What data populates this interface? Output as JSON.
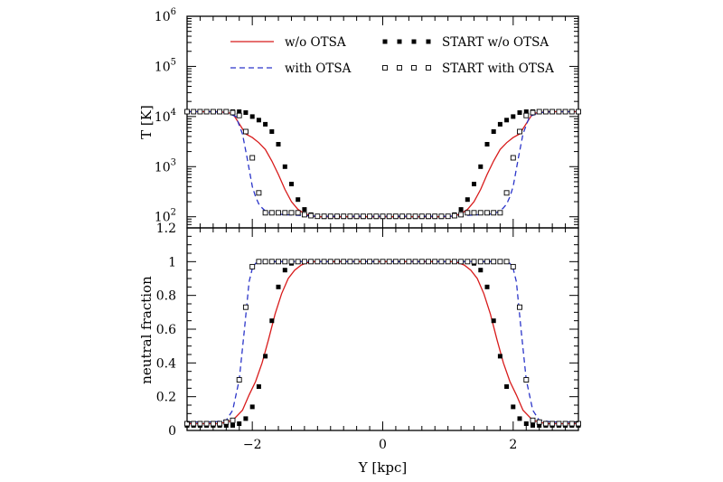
{
  "colors": {
    "red_series": "#d81b1b",
    "blue_series": "#2b35c9",
    "black": "#000000"
  },
  "chart_data": [
    {
      "type": "line",
      "panel": "top",
      "xlabel": "",
      "ylabel": "T [K]",
      "xlim": [
        -3,
        3
      ],
      "ylim": [
        60,
        1000000
      ],
      "y_scale": "log",
      "y_tick_values": [
        100,
        1000,
        10000,
        100000,
        1000000
      ],
      "y_tick_labels": [
        "10",
        "10",
        "10",
        "10",
        "10"
      ],
      "y_tick_exponents": [
        "2",
        "3",
        "4",
        "5",
        "6"
      ],
      "legend": {
        "placement": "top",
        "entries": [
          {
            "label": "w/o OTSA",
            "style": "red-solid-line"
          },
          {
            "label": "with OTSA",
            "style": "blue-dashed-line"
          },
          {
            "label": "START w/o OTSA",
            "style": "filled-black-squares"
          },
          {
            "label": "START with OTSA",
            "style": "open-black-squares"
          }
        ]
      },
      "series": [
        {
          "name": "w/o OTSA",
          "style": "red-solid-line",
          "x": [
            -3,
            -2.5,
            -2.3,
            -2.1,
            -2.0,
            -1.9,
            -1.8,
            -1.7,
            -1.6,
            -1.5,
            -1.4,
            -1.3,
            -1.2,
            -1.1,
            -1.0,
            -0.5,
            0,
            0.5,
            1.0,
            1.1,
            1.2,
            1.3,
            1.4,
            1.5,
            1.6,
            1.7,
            1.8,
            1.9,
            2.0,
            2.1,
            2.3,
            2.5,
            3
          ],
          "y": [
            12500,
            12500,
            11500,
            4500,
            3800,
            3000,
            2200,
            1300,
            700,
            350,
            200,
            140,
            115,
            104,
            100,
            100,
            100,
            100,
            100,
            104,
            115,
            140,
            200,
            350,
            700,
            1300,
            2200,
            3000,
            3800,
            4500,
            11500,
            12500,
            12500
          ]
        },
        {
          "name": "with OTSA",
          "style": "blue-dashed-line",
          "x": [
            -3,
            -2.6,
            -2.4,
            -2.25,
            -2.15,
            -2.08,
            -2.0,
            -1.95,
            -1.9,
            -1.85,
            -1.8,
            -1.7,
            -1.5,
            -1.3,
            -1.1,
            -1.0,
            0,
            1.0,
            1.1,
            1.3,
            1.5,
            1.7,
            1.8,
            1.85,
            1.9,
            1.95,
            2.0,
            2.08,
            2.15,
            2.25,
            2.4,
            2.6,
            3
          ],
          "y": [
            12500,
            12500,
            12000,
            10000,
            4500,
            1500,
            400,
            250,
            180,
            150,
            130,
            115,
            110,
            107,
            104,
            102,
            102,
            102,
            104,
            107,
            110,
            115,
            130,
            150,
            180,
            250,
            400,
            1500,
            4500,
            10000,
            12000,
            12500,
            12500
          ]
        },
        {
          "name": "START w/o OTSA",
          "style": "filled-black-squares",
          "x": [
            -3.0,
            -2.9,
            -2.8,
            -2.7,
            -2.6,
            -2.5,
            -2.4,
            -2.3,
            -2.2,
            -2.1,
            -2.0,
            -1.9,
            -1.8,
            -1.7,
            -1.6,
            -1.5,
            -1.4,
            -1.3,
            -1.2,
            -1.1,
            -1.0,
            -0.9,
            -0.8,
            -0.7,
            -0.6,
            -0.5,
            -0.4,
            -0.3,
            -0.2,
            -0.1,
            0.0,
            0.1,
            0.2,
            0.3,
            0.4,
            0.5,
            0.6,
            0.7,
            0.8,
            0.9,
            1.0,
            1.1,
            1.2,
            1.3,
            1.4,
            1.5,
            1.6,
            1.7,
            1.8,
            1.9,
            2.0,
            2.1,
            2.2,
            2.3,
            2.4,
            2.5,
            2.6,
            2.7,
            2.8,
            2.9,
            3.0
          ],
          "y": [
            12500,
            12500,
            12500,
            12500,
            12500,
            12500,
            12500,
            12500,
            12500,
            12000,
            10000,
            8500,
            7000,
            5000,
            2800,
            1000,
            450,
            220,
            140,
            110,
            102,
            100,
            100,
            100,
            100,
            100,
            100,
            100,
            100,
            100,
            100,
            100,
            100,
            100,
            100,
            100,
            100,
            100,
            100,
            100,
            102,
            110,
            140,
            220,
            450,
            1000,
            2800,
            5000,
            7000,
            8500,
            10000,
            12000,
            12500,
            12500,
            12500,
            12500,
            12500,
            12500,
            12500,
            12500,
            12500
          ]
        },
        {
          "name": "START with OTSA",
          "style": "open-black-squares",
          "x": [
            -3.0,
            -2.9,
            -2.8,
            -2.7,
            -2.6,
            -2.5,
            -2.4,
            -2.3,
            -2.2,
            -2.1,
            -2.0,
            -1.9,
            -1.8,
            -1.7,
            -1.6,
            -1.5,
            -1.4,
            -1.3,
            -1.2,
            -1.1,
            -1.0,
            -0.9,
            -0.8,
            -0.7,
            -0.6,
            -0.5,
            -0.4,
            -0.3,
            -0.2,
            -0.1,
            0.0,
            0.1,
            0.2,
            0.3,
            0.4,
            0.5,
            0.6,
            0.7,
            0.8,
            0.9,
            1.0,
            1.1,
            1.2,
            1.3,
            1.4,
            1.5,
            1.6,
            1.7,
            1.8,
            1.9,
            2.0,
            2.1,
            2.2,
            2.3,
            2.4,
            2.5,
            2.6,
            2.7,
            2.8,
            2.9,
            3.0
          ],
          "y": [
            12500,
            12500,
            12500,
            12500,
            12500,
            12500,
            12500,
            12000,
            10500,
            5000,
            1500,
            300,
            120,
            120,
            120,
            120,
            120,
            120,
            110,
            105,
            102,
            102,
            102,
            102,
            102,
            102,
            102,
            102,
            102,
            102,
            102,
            102,
            102,
            102,
            102,
            102,
            102,
            102,
            102,
            102,
            102,
            105,
            110,
            120,
            120,
            120,
            120,
            120,
            120,
            300,
            1500,
            5000,
            10500,
            12000,
            12500,
            12500,
            12500,
            12500,
            12500,
            12500,
            12500
          ]
        }
      ]
    },
    {
      "type": "line",
      "panel": "bottom",
      "xlabel": "Y [kpc]",
      "ylabel": "neutral fraction",
      "xlim": [
        -3,
        3
      ],
      "ylim": [
        0,
        1.2
      ],
      "x_tick_labels": [
        "−2",
        "0",
        "2"
      ],
      "x_tick_values": [
        -2,
        0,
        2
      ],
      "y_tick_labels": [
        "0",
        "0.2",
        "0.4",
        "0.6",
        "0.8",
        "1",
        "1.2"
      ],
      "y_tick_values": [
        0,
        0.2,
        0.4,
        0.6,
        0.8,
        1.0,
        1.2
      ],
      "series": [
        {
          "name": "w/o OTSA",
          "style": "red-solid-line",
          "x": [
            -3,
            -2.5,
            -2.3,
            -2.15,
            -2.05,
            -1.95,
            -1.85,
            -1.75,
            -1.65,
            -1.55,
            -1.45,
            -1.35,
            -1.25,
            -1.15,
            -1.05,
            -1.0,
            0,
            1.0,
            1.05,
            1.15,
            1.25,
            1.35,
            1.45,
            1.55,
            1.65,
            1.75,
            1.85,
            1.95,
            2.05,
            2.15,
            2.3,
            2.5,
            3
          ],
          "y": [
            0.04,
            0.04,
            0.06,
            0.12,
            0.21,
            0.29,
            0.4,
            0.54,
            0.69,
            0.81,
            0.9,
            0.95,
            0.98,
            0.995,
            1.0,
            1.0,
            1.0,
            1.0,
            1.0,
            0.995,
            0.98,
            0.95,
            0.9,
            0.81,
            0.69,
            0.54,
            0.4,
            0.29,
            0.21,
            0.12,
            0.06,
            0.04,
            0.04
          ]
        },
        {
          "name": "with OTSA",
          "style": "blue-dashed-line",
          "x": [
            -3,
            -2.6,
            -2.4,
            -2.3,
            -2.2,
            -2.12,
            -2.05,
            -2.0,
            -1.95,
            -1.9,
            -1.85,
            -1.8,
            -1.5,
            0,
            1.5,
            1.8,
            1.85,
            1.9,
            1.95,
            2.0,
            2.05,
            2.12,
            2.2,
            2.3,
            2.4,
            2.6,
            3
          ],
          "y": [
            0.05,
            0.05,
            0.06,
            0.12,
            0.3,
            0.6,
            0.88,
            0.96,
            0.99,
            1.0,
            1.0,
            1.0,
            1.0,
            1.0,
            1.0,
            1.0,
            1.0,
            1.0,
            0.99,
            0.96,
            0.88,
            0.6,
            0.3,
            0.12,
            0.06,
            0.05,
            0.05
          ]
        },
        {
          "name": "START w/o OTSA",
          "style": "filled-black-squares",
          "x": [
            -3.0,
            -2.9,
            -2.8,
            -2.7,
            -2.6,
            -2.5,
            -2.4,
            -2.3,
            -2.2,
            -2.1,
            -2.0,
            -1.9,
            -1.8,
            -1.7,
            -1.6,
            -1.5,
            -1.4,
            -1.3,
            -1.2,
            -1.1,
            -1.0,
            -0.9,
            -0.8,
            -0.7,
            -0.6,
            -0.5,
            -0.4,
            -0.3,
            -0.2,
            -0.1,
            0.0,
            0.1,
            0.2,
            0.3,
            0.4,
            0.5,
            0.6,
            0.7,
            0.8,
            0.9,
            1.0,
            1.1,
            1.2,
            1.3,
            1.4,
            1.5,
            1.6,
            1.7,
            1.8,
            1.9,
            2.0,
            2.1,
            2.2,
            2.3,
            2.4,
            2.5,
            2.6,
            2.7,
            2.8,
            2.9,
            3.0
          ],
          "y": [
            0.03,
            0.03,
            0.03,
            0.03,
            0.03,
            0.03,
            0.03,
            0.03,
            0.04,
            0.07,
            0.14,
            0.26,
            0.44,
            0.65,
            0.85,
            0.95,
            0.99,
            1.0,
            1.0,
            1.0,
            1.0,
            1.0,
            1.0,
            1.0,
            1.0,
            1.0,
            1.0,
            1.0,
            1.0,
            1.0,
            1.0,
            1.0,
            1.0,
            1.0,
            1.0,
            1.0,
            1.0,
            1.0,
            1.0,
            1.0,
            1.0,
            1.0,
            1.0,
            1.0,
            0.99,
            0.95,
            0.85,
            0.65,
            0.44,
            0.26,
            0.14,
            0.07,
            0.04,
            0.03,
            0.03,
            0.03,
            0.03,
            0.03,
            0.03,
            0.03,
            0.03
          ]
        },
        {
          "name": "START with OTSA",
          "style": "open-black-squares",
          "x": [
            -3.0,
            -2.9,
            -2.8,
            -2.7,
            -2.6,
            -2.5,
            -2.4,
            -2.3,
            -2.2,
            -2.1,
            -2.0,
            -1.9,
            -1.8,
            -1.7,
            -1.6,
            -1.5,
            -1.4,
            -1.3,
            -1.2,
            -1.1,
            -1.0,
            -0.9,
            -0.8,
            -0.7,
            -0.6,
            -0.5,
            -0.4,
            -0.3,
            -0.2,
            -0.1,
            0.0,
            0.1,
            0.2,
            0.3,
            0.4,
            0.5,
            0.6,
            0.7,
            0.8,
            0.9,
            1.0,
            1.1,
            1.2,
            1.3,
            1.4,
            1.5,
            1.6,
            1.7,
            1.8,
            1.9,
            2.0,
            2.1,
            2.2,
            2.3,
            2.4,
            2.5,
            2.6,
            2.7,
            2.8,
            2.9,
            3.0
          ],
          "y": [
            0.04,
            0.04,
            0.04,
            0.04,
            0.04,
            0.04,
            0.05,
            0.06,
            0.3,
            0.73,
            0.97,
            1.0,
            1.0,
            1.0,
            1.0,
            1.0,
            1.0,
            1.0,
            1.0,
            1.0,
            1.0,
            1.0,
            1.0,
            1.0,
            1.0,
            1.0,
            1.0,
            1.0,
            1.0,
            1.0,
            1.0,
            1.0,
            1.0,
            1.0,
            1.0,
            1.0,
            1.0,
            1.0,
            1.0,
            1.0,
            1.0,
            1.0,
            1.0,
            1.0,
            1.0,
            1.0,
            1.0,
            1.0,
            1.0,
            1.0,
            0.97,
            0.73,
            0.3,
            0.06,
            0.05,
            0.04,
            0.04,
            0.04,
            0.04,
            0.04,
            0.04
          ]
        }
      ]
    }
  ]
}
